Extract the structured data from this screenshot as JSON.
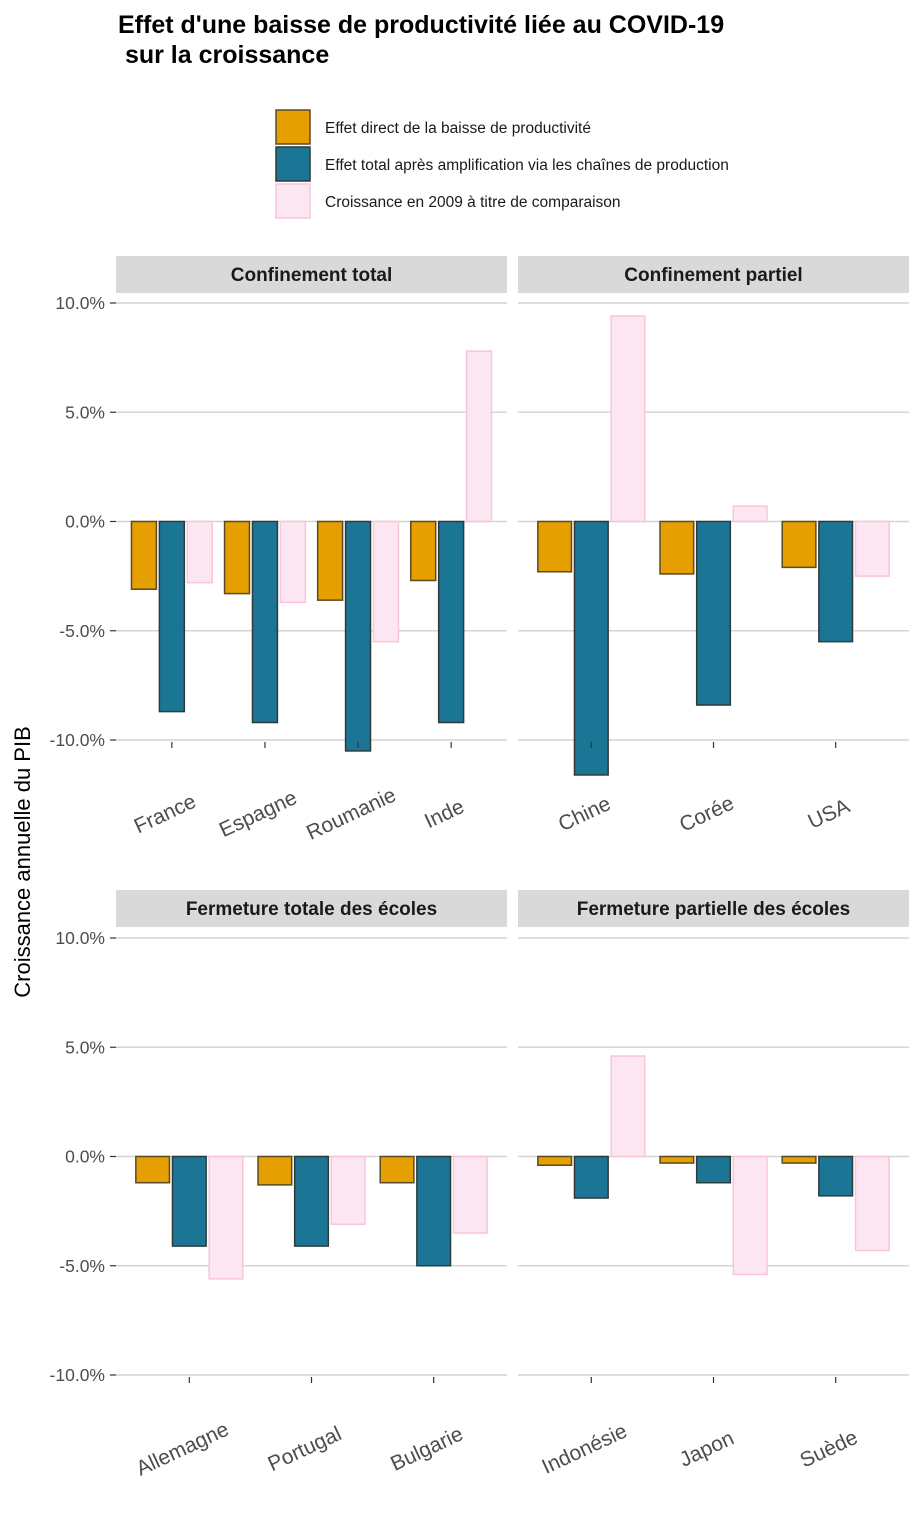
{
  "title_line1": "Effet d'une baisse de productivité liée au COVID-19",
  "title_line2": " sur la croissance",
  "ylabel": "Croissance annuelle du PIB",
  "legend": [
    {
      "name": "Effet direct de la baisse de productivité",
      "color": "#E69F00",
      "stroke": "#5a4a26",
      "opacity": 1
    },
    {
      "name": "Effet total après amplification via les chaînes de production",
      "color": "#0F6E8E",
      "stroke": "#2e3a3c",
      "opacity": 0.95
    },
    {
      "name": "Croissance en 2009 à titre de comparaison",
      "color": "#FCE6F1",
      "stroke": "#F7C6DB",
      "opacity": 1
    }
  ],
  "chart_data": {
    "type": "bar",
    "ylim": [
      -12,
      12
    ],
    "yticks": [
      10,
      5,
      0,
      -5,
      -10
    ],
    "ytick_labels": [
      "10.0%",
      "5.0%",
      "0.0%",
      "-5.0%",
      "-10.0%"
    ],
    "grid": true,
    "legend_position": "top",
    "series_names": [
      "Effet direct de la baisse de productivité",
      "Effet total après amplification via les chaînes de production",
      "Croissance en 2009 à titre de comparaison"
    ],
    "panels": [
      {
        "title": "Confinement total",
        "categories": [
          "France",
          "Espagne",
          "Roumanie",
          "Inde"
        ],
        "values": [
          [
            -3.1,
            -8.7,
            -2.8
          ],
          [
            -3.3,
            -9.2,
            -3.7
          ],
          [
            -3.6,
            -10.5,
            -5.5
          ],
          [
            -2.7,
            -9.2,
            7.8
          ]
        ]
      },
      {
        "title": "Confinement partiel",
        "categories": [
          "Chine",
          "Corée",
          "USA"
        ],
        "values": [
          [
            -2.3,
            -11.6,
            9.4
          ],
          [
            -2.4,
            -8.4,
            0.7
          ],
          [
            -2.1,
            -5.5,
            -2.5
          ]
        ]
      },
      {
        "title": "Fermeture totale des écoles",
        "categories": [
          "Allemagne",
          "Portugal",
          "Bulgarie"
        ],
        "values": [
          [
            -1.2,
            -4.1,
            -5.6
          ],
          [
            -1.3,
            -4.1,
            -3.1
          ],
          [
            -1.2,
            -5.0,
            -3.5
          ]
        ]
      },
      {
        "title": "Fermeture partielle des écoles",
        "categories": [
          "Indonésie",
          "Japon",
          "Suède"
        ],
        "values": [
          [
            -0.4,
            -1.9,
            4.6
          ],
          [
            -0.3,
            -1.2,
            -5.4
          ],
          [
            -0.3,
            -1.8,
            -4.3
          ]
        ]
      }
    ]
  }
}
